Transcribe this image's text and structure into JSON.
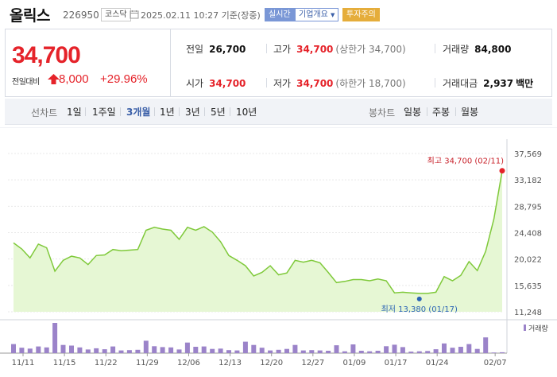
{
  "header": {
    "name": "올릭스",
    "code": "226950",
    "market": "코스닥",
    "datetime": "2025.02.11 10:27 기준(장중)",
    "realtime": "실시간",
    "company_info": "기업개요",
    "warning": "투자주의"
  },
  "summary": {
    "price": "34,700",
    "change_label": "전일대비",
    "change_value": "8,000",
    "change_pct": "+29.96%",
    "prev_close_label": "전일",
    "prev_close": "26,700",
    "high_label": "고가",
    "high": "34,700",
    "upper_limit": "(상한가 34,700)",
    "volume_label": "거래량",
    "volume": "84,800",
    "open_label": "시가",
    "open": "34,700",
    "low_label": "저가",
    "low": "34,700",
    "lower_limit": "(하한가 18,700)",
    "amount_label": "거래대금",
    "amount": "2,937",
    "amount_unit": "백만"
  },
  "toolbar": {
    "line_label": "선차트",
    "periods": [
      "1일",
      "1주일",
      "3개월",
      "1년",
      "3년",
      "5년",
      "10년"
    ],
    "active_period": "3개월",
    "candle_label": "봉차트",
    "candles": [
      "일봉",
      "주봉",
      "월봉"
    ]
  },
  "colors": {
    "up": "#e5232a",
    "line": "#7fc93a",
    "area": "#e6f7d4",
    "volume": "#9b83c9",
    "low_marker": "#2a63b5",
    "high_marker": "#e5232a"
  },
  "chart_data": {
    "type": "area",
    "y_ticks": [
      "37,569",
      "33,182",
      "28,795",
      "24,408",
      "20,022",
      "15,635",
      "11,248"
    ],
    "ylim": [
      11248,
      37569
    ],
    "x_ticks": [
      "11/11",
      "11/15",
      "11/22",
      "11/29",
      "12/06",
      "12/13",
      "12/20",
      "12/27",
      "01/09",
      "01/17",
      "01/24",
      "02/07"
    ],
    "annotations": {
      "high": "최고 34,700 (02/11)",
      "low": "최저 13,380 (01/17)"
    },
    "legend": "거래량",
    "price": [
      22700,
      21700,
      20200,
      22500,
      21900,
      18000,
      19800,
      20500,
      20200,
      19100,
      20600,
      20700,
      21600,
      21400,
      21500,
      21600,
      24800,
      25300,
      25000,
      24800,
      23300,
      25300,
      24800,
      25400,
      24500,
      22900,
      20600,
      19800,
      18900,
      17200,
      17800,
      18900,
      17400,
      17700,
      19800,
      19500,
      19800,
      19400,
      17800,
      16100,
      16300,
      16600,
      16600,
      16400,
      16700,
      16400,
      14400,
      14500,
      14400,
      14300,
      14300,
      14500,
      17100,
      16400,
      17300,
      19600,
      18100,
      21300,
      26700,
      34700
    ],
    "volume": [
      0.3,
      0.18,
      0.15,
      0.22,
      0.19,
      1.0,
      0.27,
      0.25,
      0.19,
      0.12,
      0.16,
      0.13,
      0.22,
      0.09,
      0.1,
      0.11,
      0.41,
      0.23,
      0.2,
      0.19,
      0.12,
      0.35,
      0.21,
      0.22,
      0.14,
      0.15,
      0.1,
      0.09,
      0.38,
      0.27,
      0.18,
      0.09,
      0.11,
      0.14,
      0.27,
      0.09,
      0.1,
      0.09,
      0.08,
      0.26,
      0.06,
      0.29,
      0.08,
      0.06,
      0.08,
      0.23,
      0.28,
      0.2,
      0.05,
      0.06,
      0.07,
      0.13,
      0.32,
      0.18,
      0.21,
      0.3,
      0.14,
      0.52,
      0.02,
      0.03
    ]
  }
}
